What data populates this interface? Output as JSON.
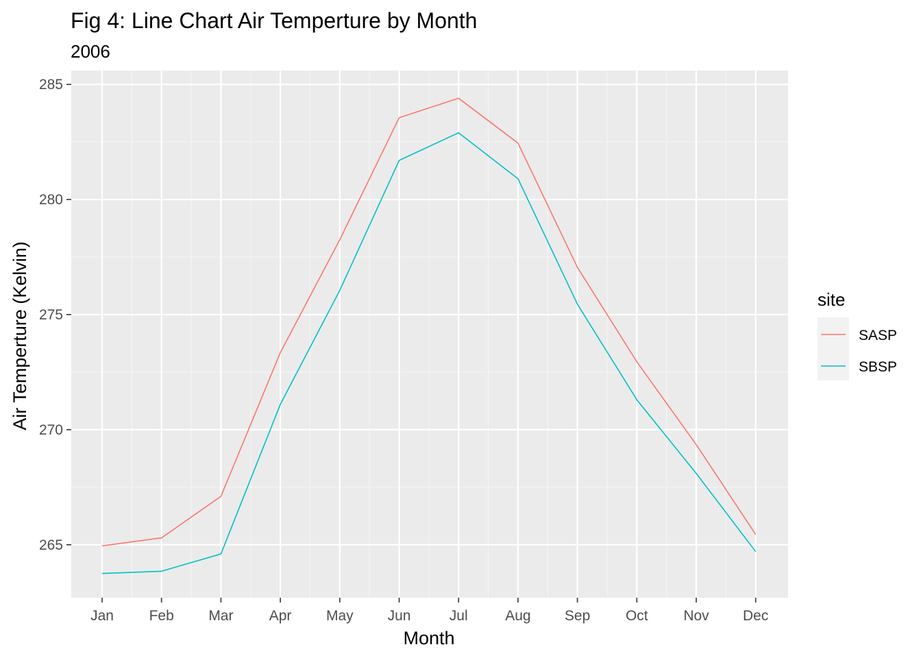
{
  "chart_data": {
    "type": "line",
    "title": "Fig 4: Line Chart Air Temperture by Month",
    "subtitle": "2006",
    "xlabel": "Month",
    "ylabel": "Air Temperture (Kelvin)",
    "categories": [
      "Jan",
      "Feb",
      "Mar",
      "Apr",
      "May",
      "Jun",
      "Jul",
      "Aug",
      "Sep",
      "Oct",
      "Nov",
      "Dec"
    ],
    "yticks": [
      265,
      270,
      275,
      280,
      285
    ],
    "ylim": [
      262.7,
      285.6
    ],
    "grid": true,
    "legend": {
      "title": "site",
      "placement": "right"
    },
    "series": [
      {
        "name": "SASP",
        "color": "#F8766D",
        "values": [
          264.95,
          265.3,
          267.1,
          273.35,
          278.25,
          283.55,
          284.4,
          282.45,
          277.05,
          272.95,
          269.35,
          265.45
        ]
      },
      {
        "name": "SBSP",
        "color": "#00BFC4",
        "values": [
          263.75,
          263.85,
          264.6,
          271.1,
          276.05,
          281.7,
          282.9,
          280.9,
          275.45,
          271.3,
          268.1,
          264.7
        ]
      }
    ]
  }
}
